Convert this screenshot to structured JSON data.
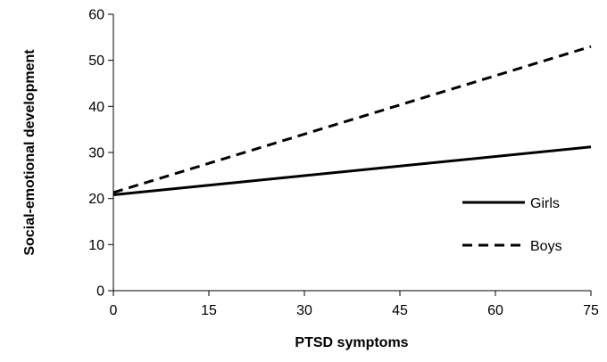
{
  "chart_data": {
    "type": "line",
    "title": "",
    "xlabel": "PTSD symptoms",
    "ylabel": "Social-emotional development",
    "xlim": [
      0,
      75
    ],
    "ylim": [
      0,
      60
    ],
    "xticks": [
      0,
      15,
      30,
      45,
      60,
      75
    ],
    "yticks": [
      0,
      10,
      20,
      30,
      40,
      50,
      60
    ],
    "grid": false,
    "legend_position": "right",
    "series": [
      {
        "name": "Girls",
        "style": "solid",
        "color": "#000000",
        "x": [
          0,
          75
        ],
        "y": [
          20.8,
          31.2
        ]
      },
      {
        "name": "Boys",
        "style": "dashed",
        "color": "#000000",
        "x": [
          0,
          75
        ],
        "y": [
          21.3,
          53.0
        ]
      }
    ]
  }
}
